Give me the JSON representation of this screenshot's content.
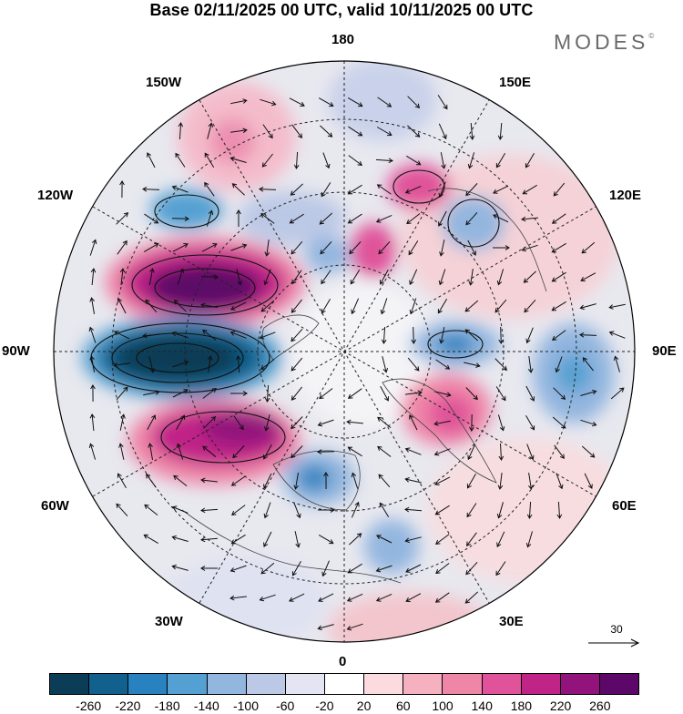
{
  "header": {
    "title": "Base 02/11/2025 00 UTC, valid 10/11/2025 00 UTC",
    "brand": "MODES",
    "brand_mark": "©"
  },
  "map": {
    "projection": "north-polar-stereographic",
    "longitude_labels": {
      "top": "180",
      "bottom": "0",
      "left": "90W",
      "right": "90E",
      "upper_left_1": "150W",
      "upper_left_2": "120W",
      "lower_left_1": "60W",
      "lower_left_2": "30W",
      "upper_right_1": "150E",
      "upper_right_2": "120E",
      "lower_right_1": "60E",
      "lower_right_2": "30E"
    },
    "reference_vector": "30"
  },
  "colorbar": {
    "colors": [
      "#0c3d56",
      "#11608d",
      "#2782bf",
      "#55a0d2",
      "#93b6df",
      "#bcc9e6",
      "#e3e5f3",
      "#ffffff",
      "#fbdbdf",
      "#f6b1c0",
      "#ef86a8",
      "#e0529a",
      "#c02487",
      "#92137b",
      "#5b0868"
    ],
    "tick_labels": [
      "-260",
      "-220",
      "-180",
      "-140",
      "-100",
      "-60",
      "-20",
      "20",
      "60",
      "100",
      "140",
      "180",
      "220",
      "260"
    ]
  }
}
